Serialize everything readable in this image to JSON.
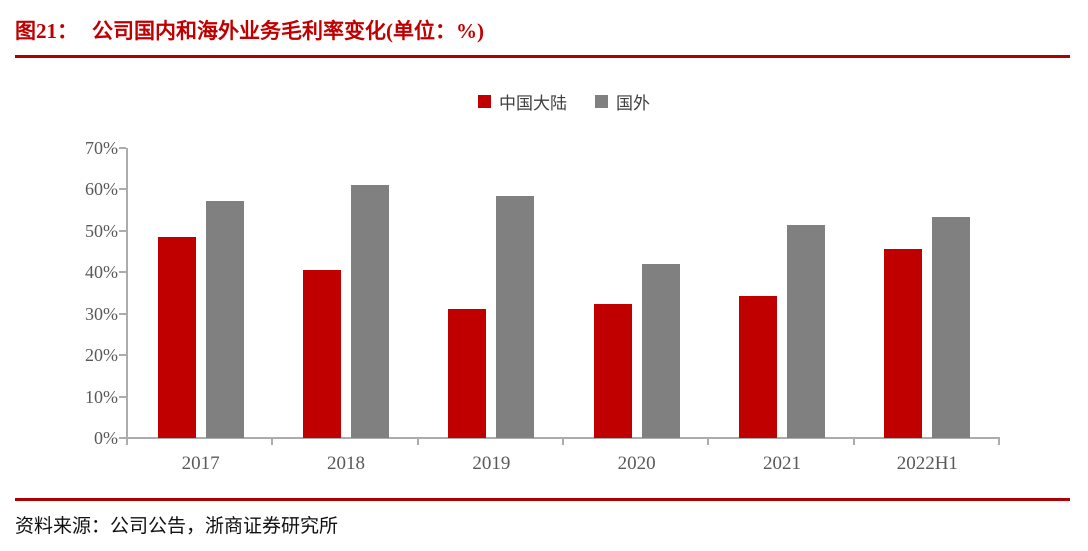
{
  "title": {
    "prefix": "图21：",
    "text": "公司国内和海外业务毛利率变化(单位：%)"
  },
  "legend": {
    "items": [
      {
        "label": "中国大陆",
        "color": "#C00000"
      },
      {
        "label": "国外",
        "color": "#808080"
      }
    ]
  },
  "source": {
    "prefix": "资料来源：",
    "text": "公司公告，浙商证券研究所"
  },
  "chart_data": {
    "type": "bar",
    "title": "公司国内和海外业务毛利率变化(单位：%)",
    "categories": [
      "2017",
      "2018",
      "2019",
      "2020",
      "2021",
      "2022H1"
    ],
    "series": [
      {
        "name": "中国大陆",
        "color": "#C00000",
        "values": [
          48.5,
          40.5,
          31.2,
          32.3,
          34.2,
          45.6
        ]
      },
      {
        "name": "国外",
        "color": "#808080",
        "values": [
          57.3,
          61.0,
          58.5,
          42.0,
          51.3,
          53.4
        ]
      }
    ],
    "xlabel": "",
    "ylabel": "",
    "unit": "%",
    "ylim": [
      0,
      70
    ],
    "ytick_step": 10,
    "ytick_labels": [
      "70%",
      "60%",
      "50%",
      "40%",
      "30%",
      "20%",
      "10%",
      "0%"
    ],
    "legend_position": "top-center",
    "grid": false,
    "axis_color": "#ACACAC",
    "tick_label_color": "#595959"
  }
}
